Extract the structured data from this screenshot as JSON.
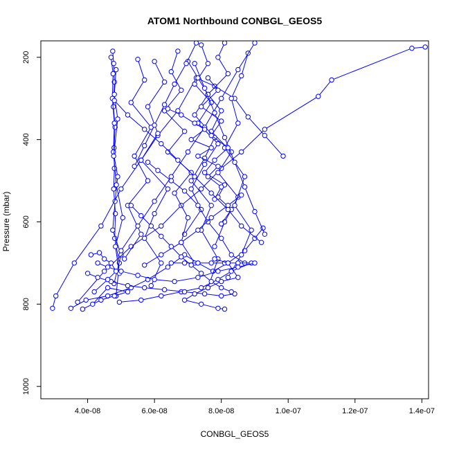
{
  "chart_data": {
    "type": "line",
    "title": "ATOM1 Northbound CONBGL_GEOS5",
    "xlabel": "CONBGL_GEOS5",
    "ylabel": "Pressure (mbar)",
    "xlim": [
      2.6e-08,
      1.42e-07
    ],
    "ylim": [
      1030,
      160
    ],
    "y_reversed": true,
    "x_ticks": [
      4e-08,
      6e-08,
      8e-08,
      1e-07,
      1.2e-07,
      1.4e-07
    ],
    "x_tick_labels": [
      "4.0e-08",
      "6.0e-08",
      "8.0e-08",
      "1.0e-07",
      "1.2e-07",
      "1.4e-07"
    ],
    "y_ticks": [
      200,
      400,
      600,
      800,
      1000
    ],
    "y_tick_labels": [
      "200",
      "400",
      "600",
      "800",
      "1000"
    ],
    "color": "#0000ff",
    "marker": "open-circle",
    "grid": false,
    "series": [
      {
        "x": [
          4.75e-08,
          4.78e-08,
          4.8e-08,
          4.77e-08,
          4.82e-08,
          4.79e-08,
          4.8e-08,
          4.78e-08,
          4.83e-08,
          4.81e-08,
          4.95e-08,
          4.85e-08
        ],
        "y": [
          185,
          215,
          260,
          320,
          370,
          420,
          470,
          520,
          580,
          640,
          700,
          780
        ]
      },
      {
        "x": [
          4.7e-08,
          4.76e-08,
          4.74e-08,
          4.8e-08,
          4.77e-08,
          4.9e-08,
          4.82e-08,
          4.75e-08,
          5e-08,
          4.79e-08
        ],
        "y": [
          200,
          240,
          300,
          360,
          430,
          490,
          550,
          620,
          680,
          750
        ]
      },
      {
        "x": [
          4.85e-08,
          4.8e-08,
          4.9e-08,
          4.78e-08,
          4.86e-08,
          5.05e-08,
          4.83e-08,
          4.95e-08
        ],
        "y": [
          230,
          290,
          350,
          440,
          510,
          590,
          660,
          725
        ]
      },
      {
        "x": [
          1.41e-07,
          1.37e-07,
          1.13e-07,
          1.09e-07,
          9.3e-08,
          8.6e-08,
          8e-08,
          7.4e-08,
          6.8e-08,
          6.2e-08,
          5.3e-08,
          4.5e-08,
          3.7e-08
        ],
        "y": [
          175,
          178,
          255,
          295,
          375,
          430,
          470,
          520,
          560,
          610,
          660,
          720,
          795
        ]
      },
      {
        "x": [
          9.85e-08,
          9.3e-08,
          8.8e-08,
          8.4e-08,
          7.8e-08,
          7.25e-08,
          6.7e-08,
          6.1e-08,
          5.6e-08,
          5e-08,
          4.4e-08,
          3.6e-08,
          3.05e-08,
          2.95e-08
        ],
        "y": [
          440,
          390,
          345,
          300,
          270,
          250,
          330,
          390,
          450,
          520,
          610,
          700,
          780,
          810
        ]
      },
      {
        "x": [
          9.25e-08,
          9e-08,
          8.7e-08,
          8.2e-08,
          7.75e-08,
          7.3e-08,
          6.9e-08,
          6.4e-08,
          5.8e-08,
          5.3e-08,
          4.6e-08,
          3.95e-08,
          3.5e-08
        ],
        "y": [
          615,
          640,
          670,
          700,
          720,
          700,
          680,
          710,
          740,
          760,
          780,
          790,
          810
        ]
      },
      {
        "x": [
          8.1e-08,
          7.9e-08,
          8.2e-08,
          7.6e-08,
          8e-08,
          7.7e-08,
          8.3e-08,
          7.9e-08,
          8.5e-08,
          8.1e-08,
          7.8e-08
        ],
        "y": [
          165,
          200,
          240,
          290,
          330,
          380,
          430,
          480,
          540,
          600,
          660
        ]
      },
      {
        "x": [
          7.4e-08,
          7.6e-08,
          7.2e-08,
          7.7e-08,
          7.3e-08,
          7.9e-08,
          7.5e-08,
          7.1e-08,
          7.4e-08,
          6.9e-08
        ],
        "y": [
          170,
          215,
          265,
          310,
          360,
          410,
          460,
          520,
          570,
          630
        ]
      },
      {
        "x": [
          6.7e-08,
          6.5e-08,
          6.8e-08,
          6.3e-08,
          6.9e-08,
          6.4e-08,
          7.1e-08,
          6.6e-08,
          7e-08,
          6.8e-08,
          7.2e-08
        ],
        "y": [
          185,
          235,
          280,
          330,
          380,
          430,
          480,
          530,
          590,
          650,
          700
        ]
      },
      {
        "x": [
          8.8e-08,
          8.6e-08,
          8.3e-08,
          8.5e-08,
          8.1e-08,
          8.7e-08,
          8.4e-08,
          8.9e-08,
          8.6e-08,
          8.2e-08
        ],
        "y": [
          190,
          245,
          300,
          360,
          420,
          490,
          560,
          620,
          680,
          735
        ]
      },
      {
        "x": [
          6e-08,
          6.3e-08,
          5.8e-08,
          6.1e-08,
          5.6e-08,
          6.4e-08,
          6e-08,
          5.7e-08,
          6.2e-08,
          5.9e-08
        ],
        "y": [
          210,
          260,
          320,
          385,
          450,
          520,
          580,
          640,
          700,
          755
        ]
      },
      {
        "x": [
          5.5e-08,
          5.7e-08,
          5.3e-08,
          5.9e-08,
          5.4e-08,
          5.8e-08,
          5.2e-08,
          5.6e-08,
          5.1e-08
        ],
        "y": [
          205,
          255,
          310,
          370,
          440,
          500,
          560,
          630,
          690
        ]
      },
      {
        "x": [
          7e-08,
          7.3e-08,
          7.6e-08,
          7.2e-08,
          7.8e-08,
          7.5e-08,
          7.1e-08,
          7.7e-08,
          7.4e-08,
          7.9e-08,
          7.6e-08
        ],
        "y": [
          210,
          250,
          290,
          340,
          395,
          445,
          500,
          560,
          620,
          690,
          760
        ]
      },
      {
        "x": [
          9e-08,
          8.5e-08,
          8e-08,
          7.5e-08,
          7e-08,
          6.5e-08,
          6e-08,
          5.5e-08,
          5e-08
        ],
        "y": [
          165,
          230,
          300,
          370,
          430,
          490,
          550,
          610,
          670
        ]
      },
      {
        "x": [
          7.2e-08,
          7.5e-08,
          7.8e-08,
          8.1e-08,
          8.4e-08,
          8.7e-08,
          9e-08,
          9.3e-08
        ],
        "y": [
          215,
          275,
          335,
          395,
          455,
          515,
          575,
          630
        ]
      },
      {
        "x": [
          5.8e-08,
          6.1e-08,
          6.5e-08,
          6.9e-08,
          7.3e-08,
          7.6e-08,
          8e-08,
          8.3e-08,
          8.7e-08
        ],
        "y": [
          455,
          475,
          500,
          525,
          560,
          600,
          640,
          680,
          700
        ]
      },
      {
        "x": [
          7.6e-08,
          7.9e-08,
          7.4e-08,
          8e-08,
          7.7e-08,
          8.2e-08,
          7.8e-08,
          7.5e-08,
          8.1e-08,
          7.9e-08,
          8.3e-08,
          8e-08
        ],
        "y": [
          250,
          280,
          320,
          355,
          390,
          420,
          450,
          480,
          510,
          540,
          570,
          605
        ]
      },
      {
        "x": [
          6.4e-08,
          6.8e-08,
          7.2e-08,
          7.5e-08,
          7.1e-08,
          7.7e-08,
          7.3e-08,
          7.9e-08,
          7.6e-08,
          8e-08,
          7.8e-08
        ],
        "y": [
          325,
          340,
          360,
          375,
          400,
          420,
          440,
          465,
          490,
          515,
          545
        ]
      },
      {
        "x": [
          6.5e-08,
          6.9e-08,
          7.3e-08,
          7.7e-08,
          8.1e-08,
          8.5e-08,
          8.9e-08,
          8.3e-08,
          7.9e-08,
          7.4e-08,
          6.8e-08,
          6.2e-08,
          5.6e-08,
          4.95e-08
        ],
        "y": [
          700,
          700,
          700,
          700,
          700,
          700,
          700,
          720,
          740,
          760,
          770,
          780,
          790,
          795
        ]
      },
      {
        "x": [
          4e-08,
          4.3e-08,
          4.7e-08,
          5.2e-08,
          5.7e-08,
          6.3e-08,
          6.9e-08,
          7.5e-08,
          8e-08,
          8.4e-08
        ],
        "y": [
          725,
          735,
          745,
          755,
          760,
          765,
          770,
          775,
          780,
          775
        ]
      },
      {
        "x": [
          4.3e-08,
          4.6e-08,
          5e-08,
          5.5e-08,
          6e-08,
          6.6e-08,
          7.3e-08,
          7.9e-08,
          8.5e-08,
          9e-08
        ],
        "y": [
          700,
          710,
          720,
          730,
          740,
          745,
          735,
          720,
          710,
          700
        ]
      },
      {
        "x": [
          3.85e-08,
          4.4e-08,
          4.8e-08,
          5.2e-08,
          4.6e-08,
          4.15e-08
        ],
        "y": [
          812,
          790,
          780,
          770,
          760,
          800
        ]
      },
      {
        "x": [
          4.1e-08,
          4.35e-08,
          4.5e-08,
          4.7e-08,
          4.85e-08,
          4.6e-08,
          4.2e-08
        ],
        "y": [
          680,
          675,
          690,
          700,
          720,
          740,
          770
        ]
      },
      {
        "x": [
          8.6e-08,
          8.2e-08,
          7.7e-08,
          7.3e-08,
          6.8e-08,
          6.2e-08,
          5.7e-08
        ],
        "y": [
          535,
          560,
          590,
          620,
          650,
          680,
          705
        ]
      },
      {
        "x": [
          7.8e-08,
          8.2e-08,
          8.5e-08,
          8e-08,
          7.6e-08,
          7.2e-08,
          6.9e-08,
          7.4e-08,
          7.9e-08,
          8.1e-08
        ],
        "y": [
          690,
          700,
          735,
          745,
          760,
          775,
          790,
          800,
          810,
          812
        ]
      },
      {
        "x": [
          4.8e-08,
          5.2e-08,
          5.7e-08,
          6.2e-08,
          6.7e-08,
          7.2e-08,
          7.7e-08,
          8.2e-08,
          8.6e-08,
          9.2e-08
        ],
        "y": [
          305,
          340,
          375,
          410,
          450,
          490,
          530,
          570,
          610,
          650
        ]
      },
      {
        "x": [
          5.3e-08,
          5.6e-08,
          5.9e-08,
          6.2e-08,
          6.5e-08,
          6.8e-08,
          7.1e-08,
          7.4e-08,
          7.7e-08,
          8e-08,
          8.3e-08
        ],
        "y": [
          560,
          585,
          610,
          635,
          660,
          685,
          705,
          725,
          745,
          760,
          770
        ]
      },
      {
        "x": [
          7.25e-08,
          6.95e-08,
          6.6e-08,
          6.3e-08,
          6e-08,
          5.7e-08,
          5.4e-08
        ],
        "y": [
          165,
          215,
          265,
          315,
          365,
          415,
          465
        ]
      }
    ]
  }
}
